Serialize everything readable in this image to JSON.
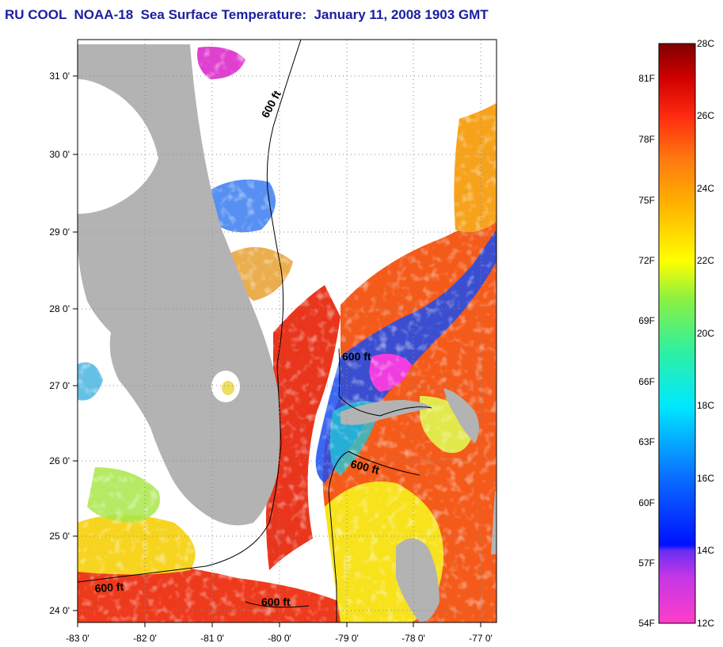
{
  "title": "RU COOL  NOAA-18  Sea Surface Temperature:  January 11, 2008 1903 GMT",
  "map": {
    "lat_labels": [
      "31 0'",
      "30 0'",
      "29 0'",
      "28 0'",
      "27 0'",
      "26 0'",
      "25 0'",
      "24 0'"
    ],
    "lon_labels": [
      "-83 0'",
      "-82 0'",
      "-81 0'",
      "-80 0'",
      "-79 0'",
      "-78 0'",
      "-77 0'"
    ],
    "contour_labels": [
      "600 ft",
      "600 ft",
      "600 ft",
      "600 ft",
      "600 ft"
    ],
    "colors": {
      "land": "#b3b3b3",
      "cloud": "#ffffff",
      "warm": "#f45a1a",
      "hot": "#e8281c",
      "yellow": "#f7e21b",
      "cold_blue": "#1a4cf0",
      "magenta": "#f03ce0"
    }
  },
  "colorbar": {
    "celsius": [
      "28C",
      "26C",
      "24C",
      "22C",
      "20C",
      "18C",
      "16C",
      "14C",
      "12C"
    ],
    "fahrenheit": [
      "81F",
      "78F",
      "75F",
      "72F",
      "69F",
      "66F",
      "63F",
      "60F",
      "57F",
      "54F"
    ],
    "range_c": [
      12,
      28
    ]
  }
}
